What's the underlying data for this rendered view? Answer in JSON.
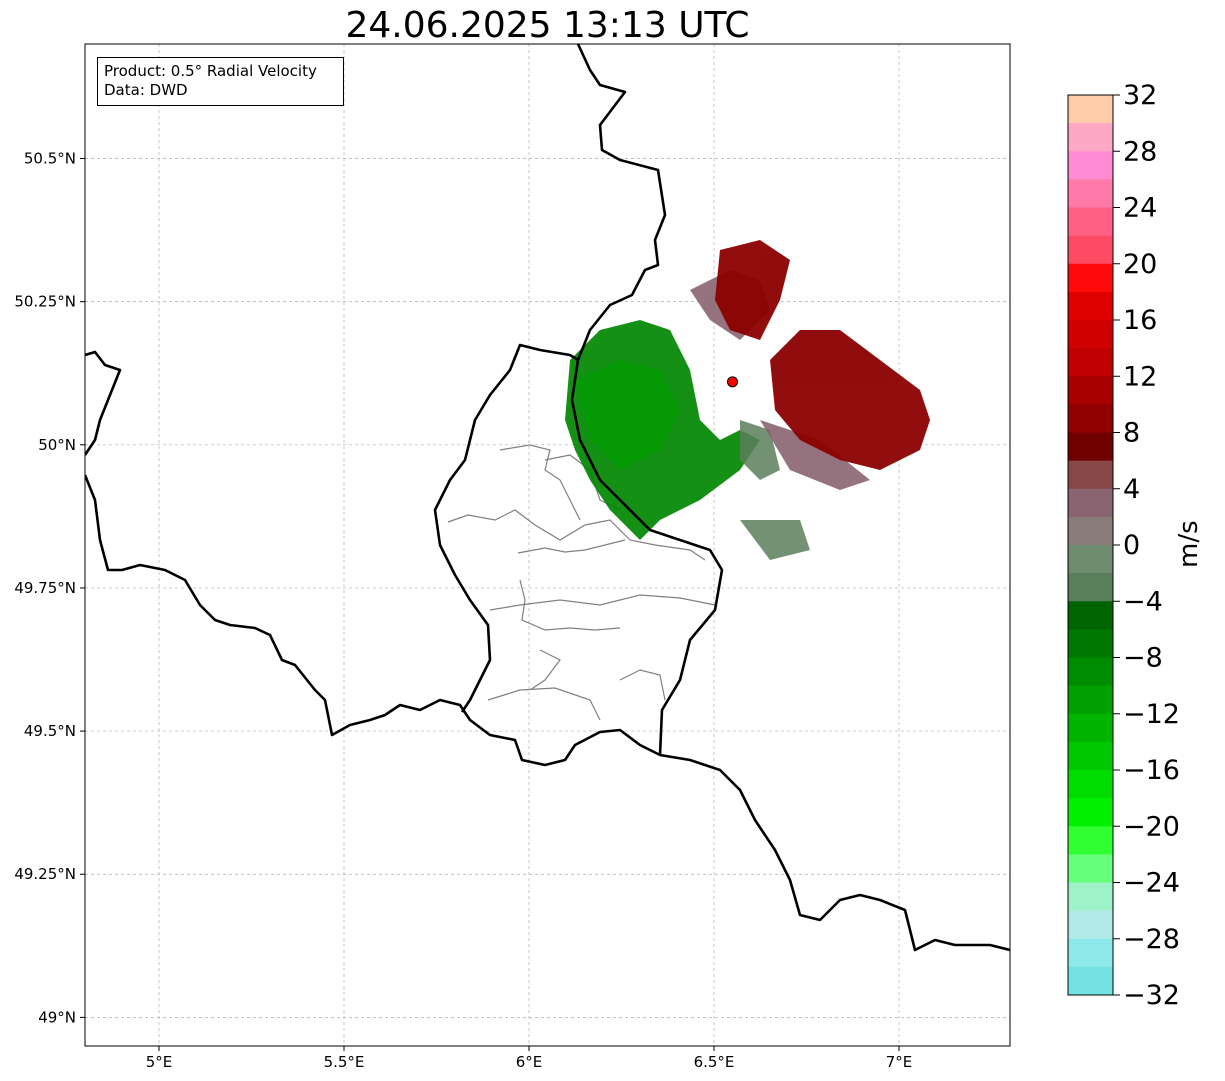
{
  "title": "24.06.2025 13:13 UTC",
  "info": {
    "product": "Product: 0.5° Radial Velocity",
    "data": "Data: DWD"
  },
  "map": {
    "lon_range": [
      4.8,
      7.3
    ],
    "lat_range": [
      48.95,
      50.7
    ],
    "x_ticks": [
      {
        "value": 5.0,
        "label": "5°E"
      },
      {
        "value": 5.5,
        "label": "5.5°E"
      },
      {
        "value": 6.0,
        "label": "6°E"
      },
      {
        "value": 6.5,
        "label": "6.5°E"
      },
      {
        "value": 7.0,
        "label": "7°E"
      }
    ],
    "y_ticks": [
      {
        "value": 50.5,
        "label": "50.5°N"
      },
      {
        "value": 50.25,
        "label": "50.25°N"
      },
      {
        "value": 50.0,
        "label": "50°N"
      },
      {
        "value": 49.75,
        "label": "49.75°N"
      },
      {
        "value": 49.5,
        "label": "49.5°N"
      },
      {
        "value": 49.25,
        "label": "49.25°N"
      },
      {
        "value": 49.0,
        "label": "49°N"
      }
    ],
    "radar_site": {
      "lon": 6.55,
      "lat": 50.11
    },
    "gridlines": true,
    "border_color": "#000000",
    "admin_border_color": "#808080",
    "marker_color": "#ff0000"
  },
  "colorbar": {
    "unit": "m/s",
    "min": -32,
    "max": 32,
    "ticks": [
      {
        "value": 32,
        "label": "32"
      },
      {
        "value": 28,
        "label": "28"
      },
      {
        "value": 24,
        "label": "24"
      },
      {
        "value": 20,
        "label": "20"
      },
      {
        "value": 16,
        "label": "16"
      },
      {
        "value": 12,
        "label": "12"
      },
      {
        "value": 8,
        "label": "8"
      },
      {
        "value": 4,
        "label": "4"
      },
      {
        "value": 0,
        "label": "0"
      },
      {
        "value": -4,
        "label": "−4"
      },
      {
        "value": -8,
        "label": "−8"
      },
      {
        "value": -12,
        "label": "−12"
      },
      {
        "value": -16,
        "label": "−16"
      },
      {
        "value": -20,
        "label": "−20"
      },
      {
        "value": -24,
        "label": "−24"
      },
      {
        "value": -28,
        "label": "−28"
      },
      {
        "value": -32,
        "label": "−32"
      }
    ],
    "colors_top_to_bottom": [
      "#ffccaa",
      "#ffa8c6",
      "#ff8bd4",
      "#ff7aa8",
      "#ff6084",
      "#ff4a64",
      "#ff0a0a",
      "#e00000",
      "#d00000",
      "#c00000",
      "#a80000",
      "#900000",
      "#700000",
      "#884848",
      "#8a6470",
      "#8a7c78",
      "#6f8c6f",
      "#5a7e5a",
      "#006400",
      "#007800",
      "#008c00",
      "#00a000",
      "#00b400",
      "#00c800",
      "#00dc00",
      "#00f000",
      "#30ff30",
      "#66ff7a",
      "#9ef2c8",
      "#b2eaea",
      "#8eeaea",
      "#74e2e2"
    ]
  }
}
